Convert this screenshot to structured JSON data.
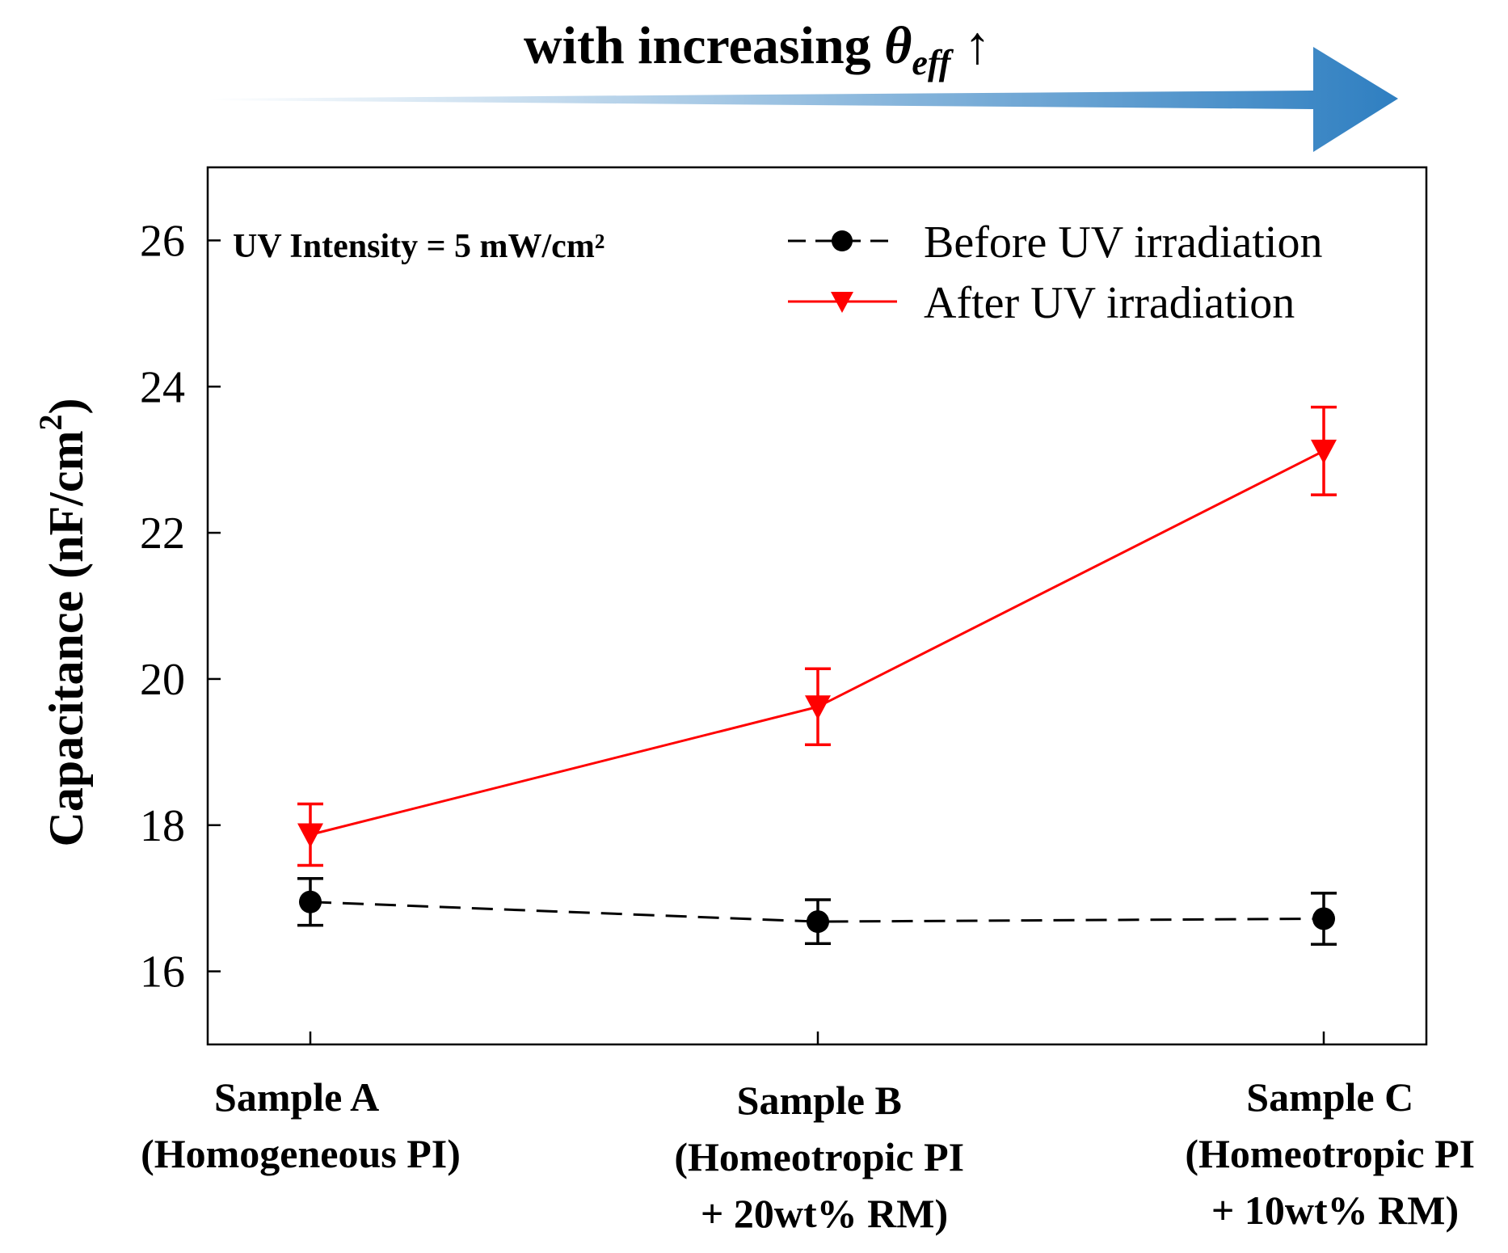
{
  "banner": {
    "prefix": "with increasing ",
    "symbol": "θ",
    "subscript": "eff",
    "suffix": " ↑",
    "gradient_start": "#ffffff",
    "gradient_end": "#2f7fc1"
  },
  "annotation": "UV Intensity = 5 mW/cm²",
  "chart_data": {
    "type": "line",
    "title": "",
    "xlabel": "",
    "ylabel": {
      "main": "Capacitance (nF/cm",
      "superscript": "2",
      "close": ")"
    },
    "ylim": [
      15,
      27
    ],
    "yticks": [
      16,
      18,
      20,
      22,
      24,
      26
    ],
    "grid": false,
    "legend_position": "top-right",
    "categories": [
      {
        "line1": "Sample A",
        "line2": "(Homogeneous PI)",
        "line3": ""
      },
      {
        "line1": "Sample B",
        "line2": "(Homeotropic PI",
        "line3": "+ 20wt% RM)"
      },
      {
        "line1": "Sample C",
        "line2": "(Homeotropic PI",
        "line3": "+ 10wt% RM)"
      }
    ],
    "series": [
      {
        "name": "Before UV irradiation",
        "color": "#000000",
        "line_style": "dashed",
        "marker": "circle",
        "values": [
          16.95,
          16.68,
          16.72
        ],
        "errors": [
          0.32,
          0.3,
          0.35
        ]
      },
      {
        "name": "After UV irradiation",
        "color": "#ff0000",
        "line_style": "solid",
        "marker": "triangle-down",
        "values": [
          17.87,
          19.62,
          23.12
        ],
        "errors": [
          0.42,
          0.52,
          0.6
        ]
      }
    ]
  }
}
